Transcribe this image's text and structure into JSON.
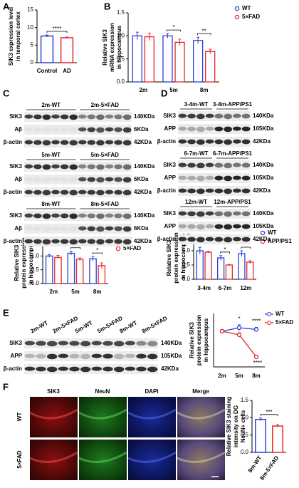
{
  "panel_labels": [
    "A",
    "B",
    "C",
    "D",
    "E",
    "F"
  ],
  "chart_data": [
    {
      "type": "bar",
      "ylabel": [
        "SIK3 expression level",
        "in temporal cortex"
      ],
      "categories": [
        "Control",
        "AD"
      ],
      "values": [
        7.6,
        7.1
      ],
      "errors": [
        0.3,
        0.2
      ],
      "colors": [
        "#2b3fd8",
        "#e8262a"
      ],
      "ylim": [
        0,
        15
      ],
      "yticks": [
        0,
        5,
        10,
        15
      ],
      "annotations": [
        "****"
      ]
    },
    {
      "type": "grouped_bar",
      "ylabel": [
        "Relative SIK3",
        "mRNA expression",
        "in hippocampus"
      ],
      "categories": [
        "2m",
        "5m",
        "8m"
      ],
      "series": [
        {
          "name": "WT",
          "color": "#2b3fd8",
          "values": [
            1.0,
            1.0,
            0.9
          ],
          "errors": [
            0.08,
            0.05,
            0.07
          ]
        },
        {
          "name": "5×FAD",
          "color": "#e8262a",
          "values": [
            0.98,
            0.86,
            0.66
          ],
          "errors": [
            0.08,
            0.07,
            0.05
          ]
        }
      ],
      "ylim": [
        0,
        1.5
      ],
      "yticks": [
        {
          "value": 0,
          "label": "0.0"
        },
        {
          "value": 0.5,
          "label": "0.5"
        },
        {
          "value": 1,
          "label": "1.0"
        },
        {
          "value": 1.5,
          "label": "1.5"
        }
      ],
      "annotations": [
        "*",
        "**"
      ]
    },
    {
      "type": "grouped_bar",
      "ylabel": [
        "Relative SIK3",
        "protein expression",
        "in hippocampus"
      ],
      "categories": [
        "2m",
        "5m",
        "8m"
      ],
      "series": [
        {
          "name": "WT",
          "color": "#2b3fd8",
          "values": [
            1.0,
            1.1,
            0.9
          ],
          "errors": [
            0.05,
            0.07,
            0.08
          ]
        },
        {
          "name": "5×FAD",
          "color": "#e8262a",
          "values": [
            0.95,
            0.88,
            0.65
          ],
          "errors": [
            0.07,
            0.05,
            0.1
          ]
        }
      ],
      "ylim": [
        0,
        1.5
      ],
      "yticks": [
        {
          "value": 0,
          "label": "0.0"
        },
        {
          "value": 0.5,
          "label": "0.5"
        },
        {
          "value": 1,
          "label": "1.0"
        },
        {
          "value": 1.5,
          "label": "1.5"
        }
      ],
      "annotations": [
        "*",
        "*"
      ]
    },
    {
      "type": "grouped_bar",
      "ylabel": [
        "Relative SIK3",
        "protein expression",
        "in hippocampus"
      ],
      "categories": [
        "3-4m",
        "6-7m",
        "12m"
      ],
      "series": [
        {
          "name": "WT",
          "color": "#2b3fd8",
          "values": [
            1.0,
            0.75,
            0.9
          ],
          "errors": [
            0.12,
            0.08,
            0.1
          ]
        },
        {
          "name": "APP/PS1",
          "color": "#e8262a",
          "values": [
            0.95,
            0.5,
            0.6
          ],
          "errors": [
            0.03,
            0.02,
            0.05
          ]
        }
      ],
      "ylim": [
        0,
        1.5
      ],
      "yticks": [
        {
          "value": 0,
          "label": "0.0"
        },
        {
          "value": 0.5,
          "label": "0.5"
        },
        {
          "value": 1,
          "label": "1.0"
        },
        {
          "value": 1.5,
          "label": "1.5"
        }
      ],
      "annotations": [
        "*",
        "*"
      ]
    },
    {
      "type": "line",
      "ylabel": [
        "Relative SIK3",
        "protein expression",
        "in hippocampus"
      ],
      "categories": [
        "2m",
        "5m",
        "8m"
      ],
      "series": [
        {
          "name": "WT",
          "color": "#2b3fd8",
          "values": [
            1.0,
            1.1,
            1.05
          ],
          "errors": [
            0.05,
            0.08,
            0.06
          ]
        },
        {
          "name": "5×FAD",
          "color": "#e8262a",
          "values": [
            1.0,
            0.9,
            0.28
          ],
          "errors": [
            0.05,
            0.06,
            0.05
          ]
        }
      ],
      "ylim": [
        0,
        1.5
      ],
      "annotations": [
        "*",
        "****",
        "****"
      ]
    },
    {
      "type": "bar",
      "ylabel": [
        "Relative SIK3 staining",
        "intensity on DG",
        "NeuN+ cells"
      ],
      "categories": [
        "8m-WT",
        "8m-5×FAD"
      ],
      "values": [
        0.95,
        0.76
      ],
      "errors": [
        0.04,
        0.04
      ],
      "colors": [
        "#2b3fd8",
        "#e8262a"
      ],
      "ylim": [
        0,
        1.5
      ],
      "yticks": [
        {
          "value": 0,
          "label": "0.0"
        },
        {
          "value": 0.5,
          "label": "0.5"
        },
        {
          "value": 1,
          "label": "1.0"
        },
        {
          "value": 1.5,
          "label": "1.5"
        }
      ],
      "annotations": [
        "***"
      ]
    }
  ],
  "blots": {
    "C": [
      {
        "headers": [
          "2m-WT",
          "2m-5×FAD"
        ],
        "rows": [
          "SIK3",
          "Aβ",
          "β-actin"
        ],
        "sizes": [
          "140KDa",
          "6KDa",
          "42KDa"
        ]
      },
      {
        "headers": [
          "5m-WT",
          "5m-5×FAD"
        ],
        "rows": [
          "SIK3",
          "Aβ",
          "β-actin"
        ],
        "sizes": [
          "140KDa",
          "6KDa",
          "42KDa"
        ]
      },
      {
        "headers": [
          "8m-WT",
          "8m-5×FAD"
        ],
        "rows": [
          "SIK3",
          "Aβ",
          "β-actin"
        ],
        "sizes": [
          "140KDa",
          "6KDa",
          "42KDa"
        ]
      }
    ],
    "D": [
      {
        "headers": [
          "3-4m-WT",
          "3-4m-APP/PS1"
        ],
        "rows": [
          "SIK3",
          "APP",
          "β-actin"
        ],
        "sizes": [
          "140KDa",
          "105KDa",
          "42KDa"
        ]
      },
      {
        "headers": [
          "6-7m-WT",
          "6-7m-APP/PS1"
        ],
        "rows": [
          "SIK3",
          "APP",
          "β-actin"
        ],
        "sizes": [
          "140KDa",
          "105KDa",
          "42KDa"
        ]
      },
      {
        "headers": [
          "12m-WT",
          "12m-APP/PS1"
        ],
        "rows": [
          "SIK3",
          "APP",
          "β-actin"
        ],
        "sizes": [
          "140KDa",
          "105KDa",
          "42KDa"
        ]
      }
    ],
    "E": [
      {
        "headers": [
          "2m-WT",
          "2m-5×FAD",
          "5m-WT",
          "5m-5×FAD",
          "8m-WT",
          "8m-5×FAD"
        ],
        "rows": [
          "SIK3",
          "APP",
          "β-actin"
        ],
        "sizes": [
          "140KDa",
          "105KDa",
          "42KDa"
        ]
      }
    ]
  },
  "imaging": {
    "columns": [
      "SIK3",
      "NeuN",
      "DAPI",
      "Merge"
    ],
    "rows": [
      "WT",
      "5×FAD"
    ]
  }
}
